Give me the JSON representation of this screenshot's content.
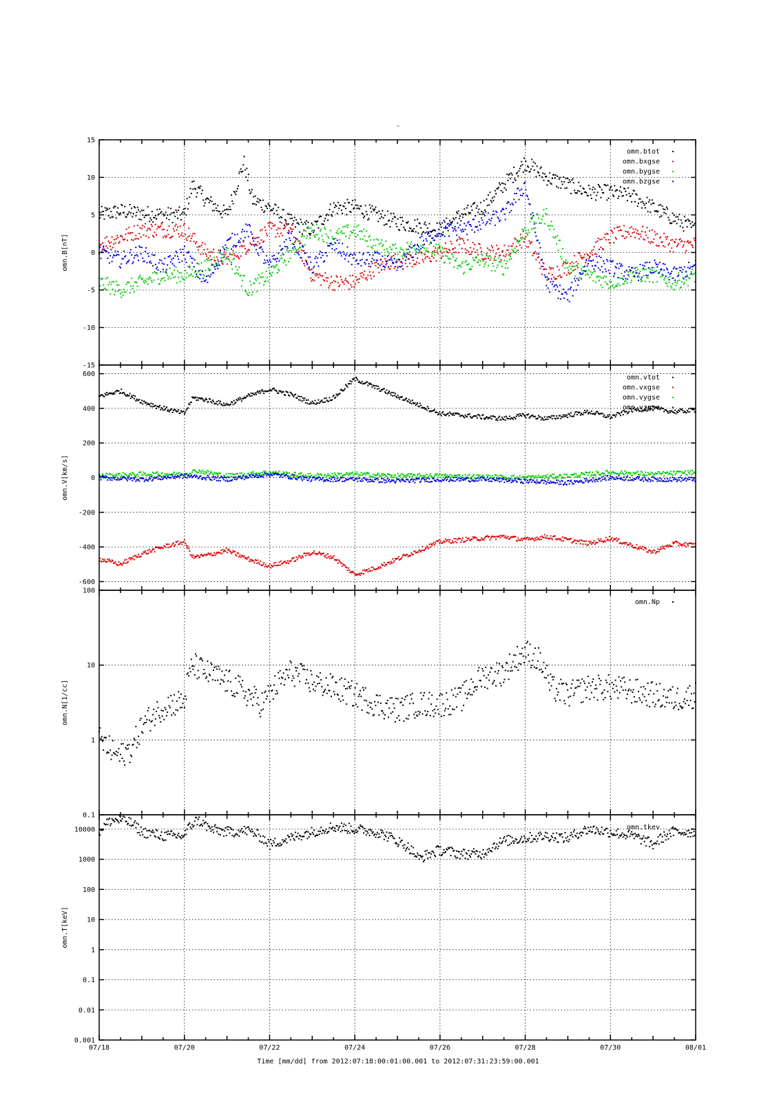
{
  "figure": {
    "title": "-",
    "time_caption": "Time [mm/dd]  from 2012:07:18:00:01:00.001  to  2012:07:31:23:59:00.001",
    "x_tick_labels": [
      "07/18",
      "07/20",
      "07/22",
      "07/24",
      "07/26",
      "07/28",
      "07/30",
      "08/01"
    ]
  },
  "chart_data": [
    {
      "type": "scatter",
      "ylabel": "omn.B[nT]",
      "ylim": [
        -15,
        15
      ],
      "yticks": [
        -15,
        -10,
        -5,
        0,
        5,
        10,
        15
      ],
      "ytick_labels": [
        "-15",
        "-10",
        "-5",
        "0",
        "5",
        "10",
        "15"
      ],
      "xlim": [
        0,
        14
      ],
      "legend_position": "top-right",
      "series": [
        {
          "name": "omn.btot",
          "color": "#000000",
          "x": [
            0,
            0.5,
            1,
            1.5,
            2,
            2.2,
            2.5,
            3,
            3.4,
            3.6,
            4,
            4.5,
            5,
            5.5,
            6,
            6.5,
            7,
            7.5,
            8,
            8.5,
            9,
            9.5,
            10,
            10.5,
            11,
            11.5,
            12,
            12.5,
            13,
            13.5,
            14
          ],
          "y": [
            5,
            5.5,
            5.2,
            5,
            5,
            9,
            7,
            5,
            12,
            7,
            6,
            4,
            3,
            6,
            6,
            5,
            4,
            3.5,
            3,
            5,
            6,
            9,
            12,
            10,
            9,
            8,
            8,
            7.5,
            6,
            4.5,
            3
          ]
        },
        {
          "name": "omn.bxgse",
          "color": "#dd0000",
          "x": [
            0,
            0.5,
            1,
            1.5,
            2,
            2.5,
            3,
            3.5,
            4,
            4.5,
            5,
            5.5,
            6,
            6.5,
            7,
            7.5,
            8,
            8.5,
            9,
            9.5,
            10,
            10.5,
            11,
            11.5,
            12,
            12.5,
            13,
            13.5,
            14
          ],
          "y": [
            1,
            2,
            3,
            3,
            3,
            0,
            -1,
            1,
            3,
            3,
            -3,
            -4,
            -4,
            -2,
            -1,
            -1,
            0,
            1,
            0,
            0,
            2,
            -3,
            -2,
            0,
            2,
            3,
            2,
            1,
            1
          ]
        },
        {
          "name": "omn.bygse",
          "color": "#00cc00",
          "x": [
            0,
            0.5,
            1,
            1.5,
            2,
            2.5,
            3,
            3.5,
            4,
            4.5,
            5,
            5.5,
            6,
            6.5,
            7,
            7.5,
            8,
            8.5,
            9,
            9.5,
            10,
            10.5,
            11,
            11.5,
            12,
            12.5,
            13,
            13.5,
            14
          ],
          "y": [
            -4,
            -5,
            -4,
            -3,
            -3,
            -2,
            0,
            -5,
            -3,
            0,
            3,
            2,
            3,
            1,
            0,
            1,
            0,
            -2,
            -1,
            -2,
            3,
            5,
            -2,
            -3,
            -4,
            -3,
            -3,
            -4,
            -3
          ]
        },
        {
          "name": "omn.bzgse",
          "color": "#0000dd",
          "x": [
            0,
            0.5,
            1,
            1.5,
            2,
            2.5,
            3,
            3.5,
            4,
            4.5,
            5,
            5.5,
            6,
            6.5,
            7,
            7.5,
            8,
            8.5,
            9,
            9.5,
            10,
            10.5,
            11,
            11.5,
            12,
            12.5,
            13,
            13.5,
            14
          ],
          "y": [
            0,
            -1,
            0,
            -2,
            0,
            -4,
            1,
            3,
            -2,
            2,
            -2,
            1,
            -1,
            -1,
            -2,
            1,
            3,
            3,
            4,
            5,
            9,
            -4,
            -6,
            -1,
            -2,
            -3,
            -2,
            -3,
            -2
          ]
        }
      ]
    },
    {
      "type": "scatter",
      "ylabel": "omn.V[km/s]",
      "ylim": [
        -650,
        650
      ],
      "yticks": [
        -600,
        -400,
        -200,
        0,
        200,
        400,
        600
      ],
      "ytick_labels": [
        "-600",
        "-400",
        "-200",
        "0",
        "200",
        "400",
        "600"
      ],
      "xlim": [
        0,
        14
      ],
      "legend_position": "top-right",
      "series": [
        {
          "name": "omn.vtot",
          "color": "#000000",
          "x": [
            0,
            0.5,
            1,
            1.5,
            2,
            2.2,
            2.5,
            3,
            3.5,
            4,
            4.5,
            5,
            5.5,
            6,
            6.5,
            7,
            7.5,
            8,
            8.5,
            9,
            9.5,
            10,
            10.5,
            11,
            11.5,
            12,
            12.5,
            13,
            13.5,
            14
          ],
          "y": [
            470,
            500,
            440,
            400,
            370,
            460,
            450,
            420,
            470,
            510,
            480,
            430,
            460,
            570,
            520,
            470,
            420,
            370,
            360,
            350,
            340,
            360,
            340,
            360,
            380,
            350,
            390,
            400,
            380,
            390
          ]
        },
        {
          "name": "omn.vxgse",
          "color": "#dd0000",
          "x": [
            0,
            0.5,
            1,
            1.5,
            2,
            2.2,
            2.5,
            3,
            3.5,
            4,
            4.5,
            5,
            5.5,
            6,
            6.5,
            7,
            7.5,
            8,
            8.5,
            9,
            9.5,
            10,
            10.5,
            11,
            11.5,
            12,
            12.5,
            13,
            13.5,
            14
          ],
          "y": [
            -470,
            -500,
            -440,
            -400,
            -370,
            -460,
            -450,
            -420,
            -470,
            -510,
            -480,
            -430,
            -460,
            -560,
            -520,
            -470,
            -420,
            -370,
            -360,
            -350,
            -340,
            -360,
            -340,
            -360,
            -380,
            -350,
            -390,
            -430,
            -380,
            -390
          ]
        },
        {
          "name": "omn.vygse",
          "color": "#00cc00",
          "x": [
            0,
            1,
            2,
            2.3,
            3,
            4,
            5,
            6,
            7,
            8,
            9,
            10,
            11,
            12,
            13,
            14
          ],
          "y": [
            10,
            20,
            20,
            40,
            10,
            30,
            10,
            20,
            10,
            10,
            5,
            0,
            10,
            30,
            20,
            30
          ]
        },
        {
          "name": "omn.vzgse",
          "color": "#0000dd",
          "x": [
            0,
            1,
            2,
            3,
            4,
            5,
            6,
            7,
            8,
            9,
            10,
            11,
            12,
            13,
            14
          ],
          "y": [
            0,
            -10,
            10,
            -10,
            20,
            -10,
            -10,
            -20,
            -10,
            -10,
            -20,
            -30,
            0,
            -10,
            -10
          ]
        }
      ]
    },
    {
      "type": "scatter",
      "ylabel": "omn.N[1/cc]",
      "yscale": "log",
      "ylim": [
        0.1,
        100
      ],
      "yticks": [
        0.1,
        1,
        10,
        100
      ],
      "ytick_labels": [
        "0.1",
        "1",
        "10",
        "100"
      ],
      "xlim": [
        0,
        14
      ],
      "legend_position": "top-right",
      "series": [
        {
          "name": "omn.Np",
          "color": "#000000",
          "x": [
            0,
            0.3,
            0.5,
            0.8,
            1,
            1.3,
            1.6,
            2,
            2.2,
            2.5,
            3,
            3.5,
            3.8,
            4,
            4.5,
            5,
            5.5,
            6,
            6.5,
            7,
            7.5,
            8,
            8.5,
            9,
            9.5,
            10,
            10.3,
            10.6,
            11,
            11.5,
            12,
            12.5,
            13,
            13.5,
            14
          ],
          "y": [
            1,
            0.7,
            0.6,
            0.8,
            1.5,
            2.2,
            3,
            3.2,
            10,
            8,
            6,
            4,
            3,
            4,
            8,
            6,
            5,
            4,
            3,
            2.5,
            3,
            3,
            3.5,
            7,
            8,
            15,
            12,
            5,
            4,
            5,
            5,
            4.5,
            4,
            3.5,
            4
          ]
        }
      ]
    },
    {
      "type": "scatter",
      "ylabel": "omn.T[keV]",
      "yscale": "log",
      "ylim": [
        0.001,
        30000
      ],
      "yticks": [
        0.001,
        0.01,
        0.1,
        1,
        10,
        100,
        1000,
        10000
      ],
      "ytick_labels": [
        "0.001",
        "0.01",
        "0.1",
        "1",
        "10",
        "100",
        "1000",
        "10000"
      ],
      "xlim": [
        0,
        14
      ],
      "legend_position": "top-right",
      "series": [
        {
          "name": "omn.tkev",
          "color": "#000000",
          "x": [
            0,
            0.3,
            0.6,
            1,
            1.5,
            2,
            2.3,
            2.6,
            3,
            3.5,
            4,
            4.5,
            5,
            5.5,
            6,
            6.5,
            7,
            7.5,
            8,
            8.5,
            9,
            9.5,
            10,
            10.5,
            11,
            11.5,
            12,
            12.5,
            13,
            13.5,
            14
          ],
          "y": [
            8000,
            20000,
            20000,
            8000,
            6000,
            6000,
            20000,
            10000,
            8000,
            9000,
            3000,
            5000,
            8000,
            12000,
            10000,
            8000,
            4000,
            1000,
            2000,
            1500,
            1500,
            4000,
            5000,
            6000,
            5000,
            10000,
            8000,
            6000,
            3000,
            8000,
            8000
          ]
        }
      ]
    }
  ]
}
